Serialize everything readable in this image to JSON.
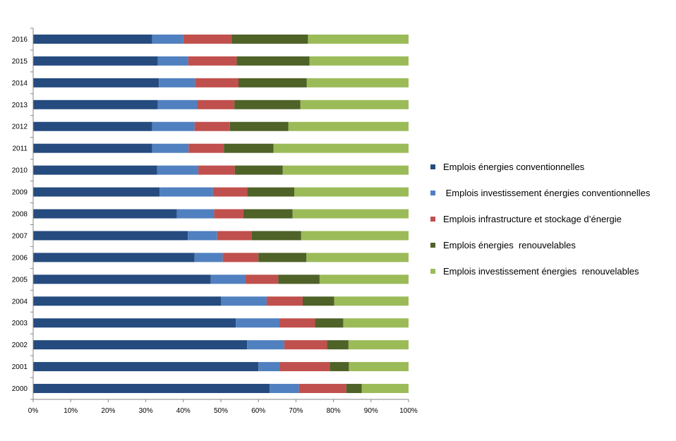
{
  "chart_data": {
    "type": "bar",
    "orientation": "horizontal",
    "stacked": "percent",
    "categories": [
      "2000",
      "2001",
      "2002",
      "2003",
      "2004",
      "2005",
      "2006",
      "2007",
      "2008",
      "2009",
      "2010",
      "2011",
      "2012",
      "2013",
      "2014",
      "2015",
      "2016"
    ],
    "series": [
      {
        "name": "Emplois énergies conventionnelles",
        "color": "#254b7f",
        "values": [
          63,
          60,
          57,
          54,
          50,
          47.3,
          43,
          41.2,
          38.3,
          33.7,
          33,
          31.7,
          31.7,
          33.2,
          33.5,
          33.2,
          31.7
        ]
      },
      {
        "name": " Emplois investissement énergies conventionnelles",
        "color": "#5080c0",
        "values": [
          7.8,
          5.7,
          9.9,
          11.6,
          12.2,
          9.2,
          7.5,
          7.8,
          9.9,
          14.2,
          11,
          9.7,
          11.3,
          10.5,
          9.6,
          8.1,
          8.3
        ]
      },
      {
        "name": "Emplois infrastructure et stockage d’énergie",
        "color": "#c0504d",
        "values": [
          12.6,
          13.3,
          11.4,
          9.5,
          9.6,
          8.8,
          9.5,
          9.2,
          7.8,
          9.1,
          9.7,
          9.4,
          9.4,
          9.9,
          11.6,
          12.9,
          12.9
        ]
      },
      {
        "name": "Emplois énergies  renouvelables",
        "color": "#4f6228",
        "values": [
          4.1,
          5.1,
          5.7,
          7.5,
          8.4,
          11,
          12.8,
          13.2,
          13.1,
          12.6,
          12.8,
          13.2,
          15.6,
          17.6,
          18.2,
          19.4,
          20.3
        ]
      },
      {
        "name": "Emplois investissement énergies  renouvelables",
        "color": "#9bbb59",
        "values": [
          12.5,
          15.9,
          16,
          17.4,
          19.8,
          23.7,
          27.2,
          28.6,
          30.9,
          30.4,
          33.5,
          36,
          32,
          28.8,
          27.1,
          26.4,
          26.8
        ]
      }
    ],
    "x_ticks": [
      "0%",
      "10%",
      "20%",
      "30%",
      "40%",
      "50%",
      "60%",
      "70%",
      "80%",
      "90%",
      "100%"
    ],
    "xlim": [
      0,
      100
    ],
    "title": "",
    "xlabel": "",
    "ylabel": "",
    "grid": false,
    "legend_position": "right"
  }
}
